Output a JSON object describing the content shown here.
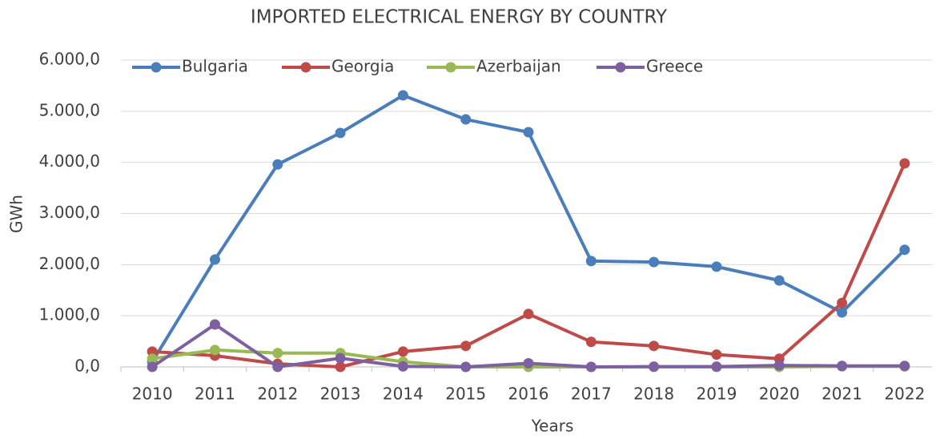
{
  "chart_data": {
    "type": "line",
    "title": "IMPORTED ELECTRICAL ENERGY BY COUNTRY",
    "x_label": "Years",
    "y_label": "GWh",
    "categories": [
      "2010",
      "2011",
      "2012",
      "2013",
      "2014",
      "2015",
      "2016",
      "2017",
      "2018",
      "2019",
      "2020",
      "2021",
      "2022"
    ],
    "series": [
      {
        "name": "Bulgaria",
        "color": "#4a7ebb",
        "values": [
          100,
          2100,
          3960,
          4575,
          5310,
          4840,
          4590,
          2070,
          2050,
          1960,
          1690,
          1065,
          2290
        ]
      },
      {
        "name": "Georgia",
        "color": "#be4b48",
        "values": [
          300,
          220,
          60,
          0,
          300,
          410,
          1035,
          490,
          410,
          240,
          160,
          1250,
          3980
        ]
      },
      {
        "name": "Azerbaijan",
        "color": "#98b954",
        "values": [
          160,
          330,
          270,
          270,
          100,
          0,
          0,
          0,
          0,
          0,
          0,
          10,
          10
        ]
      },
      {
        "name": "Greece",
        "color": "#7d60a0",
        "values": [
          0,
          830,
          0,
          170,
          10,
          0,
          70,
          0,
          5,
          5,
          30,
          20,
          20
        ]
      }
    ],
    "ylim": [
      0,
      6000
    ],
    "yticks": [
      {
        "value": 0,
        "label": "0,0"
      },
      {
        "value": 1000,
        "label": "1.000,0"
      },
      {
        "value": 2000,
        "label": "2.000,0"
      },
      {
        "value": 3000,
        "label": "3.000,0"
      },
      {
        "value": 4000,
        "label": "4.000,0"
      },
      {
        "value": 5000,
        "label": "5.000,0"
      },
      {
        "value": 6000,
        "label": "6.000,0"
      }
    ],
    "grid": true,
    "legend": "top-left"
  }
}
